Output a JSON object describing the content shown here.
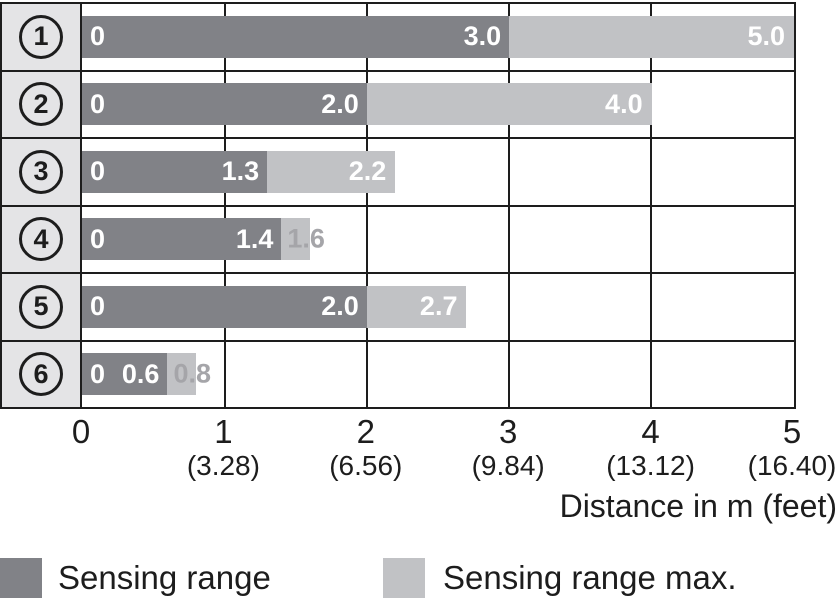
{
  "chart_data": {
    "type": "bar",
    "orientation": "horizontal",
    "xlabel": "Distance in m (feet)",
    "xlim": [
      0,
      5
    ],
    "grid": "vertical lines at each integer",
    "legend_position": "bottom",
    "categories": [
      "1",
      "2",
      "3",
      "4",
      "5",
      "6"
    ],
    "series": [
      {
        "name": "Sensing range",
        "values": [
          3.0,
          2.0,
          1.3,
          1.4,
          2.0,
          0.6
        ]
      },
      {
        "name": "Sensing range max.",
        "values": [
          5.0,
          4.0,
          2.2,
          1.6,
          2.7,
          0.8
        ]
      }
    ],
    "rows": [
      {
        "num": "1",
        "zero_label": "0",
        "range": 3.0,
        "range_label": "3.0",
        "max": 5.0,
        "max_label": "5.0",
        "max_label_outside": false
      },
      {
        "num": "2",
        "zero_label": "0",
        "range": 2.0,
        "range_label": "2.0",
        "max": 4.0,
        "max_label": "4.0",
        "max_label_outside": false
      },
      {
        "num": "3",
        "zero_label": "0",
        "range": 1.3,
        "range_label": "1.3",
        "max": 2.2,
        "max_label": "2.2",
        "max_label_outside": false
      },
      {
        "num": "4",
        "zero_label": "0",
        "range": 1.4,
        "range_label": "1.4",
        "max": 1.6,
        "max_label": "1.6",
        "max_label_outside": true
      },
      {
        "num": "5",
        "zero_label": "0",
        "range": 2.0,
        "range_label": "2.0",
        "max": 2.7,
        "max_label": "2.7",
        "max_label_outside": false
      },
      {
        "num": "6",
        "zero_label": "0",
        "range": 0.6,
        "range_label": "0.6",
        "max": 0.8,
        "max_label": "0.8",
        "max_label_outside": true
      }
    ],
    "x_ticks": [
      {
        "m": "0",
        "feet": ""
      },
      {
        "m": "1",
        "feet": "(3.28)"
      },
      {
        "m": "2",
        "feet": "(6.56)"
      },
      {
        "m": "3",
        "feet": "(9.84)"
      },
      {
        "m": "4",
        "feet": "(13.12)"
      },
      {
        "m": "5",
        "feet": "(16.40)"
      }
    ]
  },
  "legend": {
    "items": [
      {
        "label": "Sensing range",
        "color": "#818287"
      },
      {
        "label": "Sensing range max.",
        "color": "#C1C2C5"
      }
    ]
  },
  "colors": {
    "bar_dark": "#818287",
    "bar_light": "#C1C2C5",
    "label_column_bg": "#E4E4E6",
    "frame": "#1D1D1D",
    "bar_text": "#FFFFFF",
    "outside_label_text": "#A5A5A9"
  }
}
